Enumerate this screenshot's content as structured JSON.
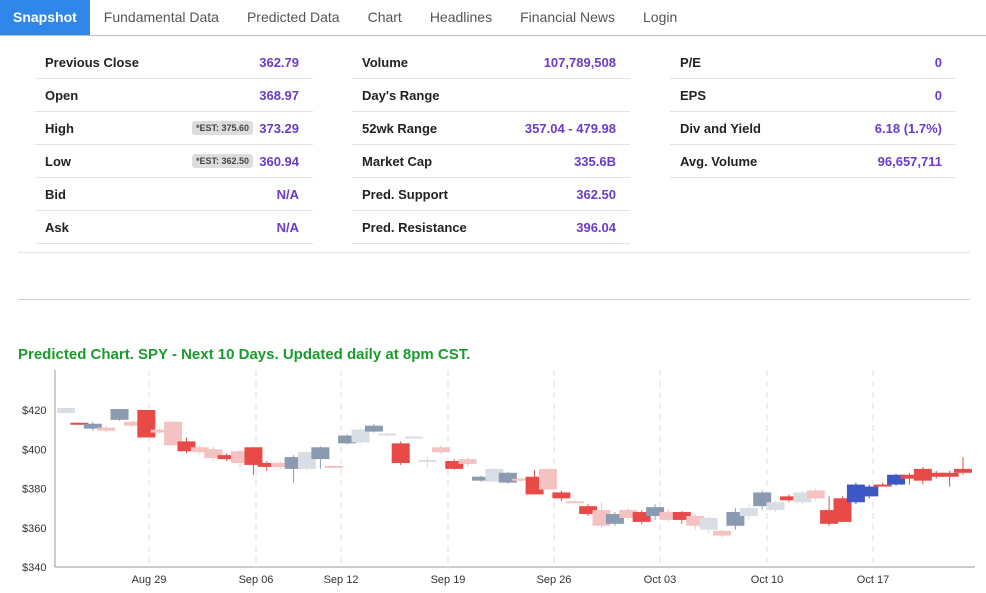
{
  "tabs": [
    "Snapshot",
    "Fundamental Data",
    "Predicted Data",
    "Chart",
    "Headlines",
    "Financial News",
    "Login"
  ],
  "stats": {
    "col1": [
      {
        "label": "Previous Close",
        "value": "362.79"
      },
      {
        "label": "Open",
        "value": "368.97"
      },
      {
        "label": "High",
        "value": "373.29",
        "est": "*EST: 375.60"
      },
      {
        "label": "Low",
        "value": "360.94",
        "est": "*EST: 362.50"
      },
      {
        "label": "Bid",
        "value": "N/A"
      },
      {
        "label": "Ask",
        "value": "N/A"
      }
    ],
    "col2": [
      {
        "label": "Volume",
        "value": "107,789,508"
      },
      {
        "label": "Day's Range",
        "value": ""
      },
      {
        "label": "52wk Range",
        "value": "357.04 - 479.98"
      },
      {
        "label": "Market Cap",
        "value": "335.6B"
      },
      {
        "label": "Pred. Support",
        "value": "362.50"
      },
      {
        "label": "Pred. Resistance",
        "value": "396.04"
      }
    ],
    "col3": [
      {
        "label": "P/E",
        "value": "0"
      },
      {
        "label": "EPS",
        "value": "0"
      },
      {
        "label": "Div and Yield",
        "value": "6.18 (1.7%)"
      },
      {
        "label": "Avg. Volume",
        "value": "96,657,711"
      }
    ]
  },
  "chart_title": "Predicted Chart. SPY - Next 10 Days. Updated daily at 8pm CST.",
  "colors": {
    "accent": "#2f87ea",
    "value": "#6a3cc9",
    "title": "#1a9c2c",
    "up_actual": "#8a9ab0",
    "down_actual": "#e84a48",
    "up_light": "#d9dde4",
    "down_light": "#f4c2c0",
    "up_pred": "#3f57c4",
    "down_pred": "#e84a48"
  },
  "chart_data": {
    "type": "candlestick",
    "y_ticks": [
      "$420",
      "$400",
      "$380",
      "$360",
      "$340"
    ],
    "ylim": [
      340,
      420
    ],
    "x_ticks": [
      "Aug 29",
      "Sep 06",
      "Sep 12",
      "Sep 19",
      "Sep 26",
      "Oct 03",
      "Oct 10",
      "Oct 17"
    ],
    "candles": [
      {
        "o": 418.5,
        "c": 421.0,
        "h": 421.0,
        "l": 418.5,
        "k": "upl"
      },
      {
        "o": 413.5,
        "c": 412.5,
        "h": 413.5,
        "l": 412.5,
        "k": "dn"
      },
      {
        "o": 413.0,
        "c": 410.5,
        "h": 414.0,
        "l": 409.5,
        "k": "up"
      },
      {
        "o": 411.0,
        "c": 409.5,
        "h": 412.0,
        "l": 408.5,
        "k": "dnl"
      },
      {
        "o": 415.0,
        "c": 420.5,
        "h": 420.5,
        "l": 414.5,
        "k": "up"
      },
      {
        "o": 412.0,
        "c": 414.0,
        "h": 414.5,
        "l": 411.5,
        "k": "dnl"
      },
      {
        "o": 420.0,
        "c": 406.0,
        "h": 420.0,
        "l": 406.0,
        "k": "dn"
      },
      {
        "o": 410.0,
        "c": 408.5,
        "h": 411.0,
        "l": 408.0,
        "k": "dnl"
      },
      {
        "o": 414.0,
        "c": 402.0,
        "h": 414.0,
        "l": 402.0,
        "k": "dnl"
      },
      {
        "o": 404.0,
        "c": 399.0,
        "h": 406.0,
        "l": 398.0,
        "k": "dn"
      },
      {
        "o": 401.0,
        "c": 398.5,
        "h": 402.0,
        "l": 397.5,
        "k": "dnl"
      },
      {
        "o": 400.0,
        "c": 395.5,
        "h": 401.0,
        "l": 394.0,
        "k": "dnl"
      },
      {
        "o": 397.0,
        "c": 395.0,
        "h": 398.0,
        "l": 394.0,
        "k": "dn"
      },
      {
        "o": 399.0,
        "c": 393.0,
        "h": 400.0,
        "l": 391.0,
        "k": "dnl"
      },
      {
        "o": 401.0,
        "c": 392.0,
        "h": 401.0,
        "l": 387.0,
        "k": "dn"
      },
      {
        "o": 393.0,
        "c": 391.0,
        "h": 394.0,
        "l": 389.0,
        "k": "dn"
      },
      {
        "o": 393.0,
        "c": 391.0,
        "h": 394.0,
        "l": 390.0,
        "k": "dnl"
      },
      {
        "o": 390.0,
        "c": 396.0,
        "h": 397.0,
        "l": 383.0,
        "k": "up"
      },
      {
        "o": 390.0,
        "c": 398.5,
        "h": 399.0,
        "l": 389.0,
        "k": "upl"
      },
      {
        "o": 395.0,
        "c": 401.0,
        "h": 401.5,
        "l": 390.0,
        "k": "up"
      },
      {
        "o": 391.5,
        "c": 391.0,
        "h": 392.0,
        "l": 391.0,
        "k": "dnl"
      },
      {
        "o": 403.0,
        "c": 407.0,
        "h": 407.5,
        "l": 402.5,
        "k": "up"
      },
      {
        "o": 403.5,
        "c": 410.0,
        "h": 410.5,
        "l": 403.0,
        "k": "upl"
      },
      {
        "o": 409.0,
        "c": 412.0,
        "h": 413.0,
        "l": 408.5,
        "k": "up"
      },
      {
        "o": 407.0,
        "c": 408.0,
        "h": 408.5,
        "l": 406.5,
        "k": "upl"
      },
      {
        "o": 403.0,
        "c": 393.0,
        "h": 404.0,
        "l": 392.0,
        "k": "dn"
      },
      {
        "o": 406.0,
        "c": 406.5,
        "h": 407.0,
        "l": 405.5,
        "k": "upl"
      },
      {
        "o": 394.0,
        "c": 394.5,
        "h": 396.0,
        "l": 390.5,
        "k": "upl"
      },
      {
        "o": 401.0,
        "c": 398.5,
        "h": 402.0,
        "l": 397.5,
        "k": "dnl"
      },
      {
        "o": 394.0,
        "c": 390.0,
        "h": 395.0,
        "l": 389.5,
        "k": "dn"
      },
      {
        "o": 395.0,
        "c": 392.5,
        "h": 396.0,
        "l": 391.0,
        "k": "dnl"
      },
      {
        "o": 384.0,
        "c": 386.0,
        "h": 386.5,
        "l": 383.5,
        "k": "up"
      },
      {
        "o": 383.5,
        "c": 390.0,
        "h": 390.5,
        "l": 383.0,
        "k": "upl"
      },
      {
        "o": 383.0,
        "c": 388.0,
        "h": 388.5,
        "l": 382.5,
        "k": "up"
      },
      {
        "o": 385.0,
        "c": 384.0,
        "h": 385.5,
        "l": 383.5,
        "k": "dnl"
      },
      {
        "o": 386.0,
        "c": 377.0,
        "h": 389.5,
        "l": 377.0,
        "k": "dn"
      },
      {
        "o": 390.0,
        "c": 379.5,
        "h": 390.0,
        "l": 379.5,
        "k": "dnl"
      },
      {
        "o": 378.0,
        "c": 375.0,
        "h": 379.0,
        "l": 373.5,
        "k": "dn"
      },
      {
        "o": 373.0,
        "c": 373.5,
        "h": 374.0,
        "l": 372.5,
        "k": "dnl"
      },
      {
        "o": 371.0,
        "c": 367.0,
        "h": 372.0,
        "l": 366.0,
        "k": "dn"
      },
      {
        "o": 369.0,
        "c": 361.0,
        "h": 373.0,
        "l": 360.0,
        "k": "dnl"
      },
      {
        "o": 362.0,
        "c": 367.0,
        "h": 368.0,
        "l": 361.0,
        "k": "up"
      },
      {
        "o": 369.0,
        "c": 365.0,
        "h": 370.0,
        "l": 364.0,
        "k": "dnl"
      },
      {
        "o": 368.0,
        "c": 363.0,
        "h": 369.0,
        "l": 362.0,
        "k": "dn"
      },
      {
        "o": 366.0,
        "c": 370.5,
        "h": 372.0,
        "l": 364.0,
        "k": "up"
      },
      {
        "o": 368.0,
        "c": 364.0,
        "h": 369.5,
        "l": 363.0,
        "k": "dnl"
      },
      {
        "o": 368.0,
        "c": 364.0,
        "h": 368.5,
        "l": 362.0,
        "k": "dn"
      },
      {
        "o": 366.0,
        "c": 361.0,
        "h": 367.0,
        "l": 359.0,
        "k": "dnl"
      },
      {
        "o": 359.0,
        "c": 365.0,
        "h": 366.0,
        "l": 357.0,
        "k": "upl"
      },
      {
        "o": 356.0,
        "c": 358.5,
        "h": 359.0,
        "l": 355.0,
        "k": "dnl"
      },
      {
        "o": 361.0,
        "c": 368.0,
        "h": 370.0,
        "l": 359.0,
        "k": "up"
      },
      {
        "o": 366.0,
        "c": 370.0,
        "h": 372.0,
        "l": 364.0,
        "k": "upl"
      },
      {
        "o": 371.0,
        "c": 378.0,
        "h": 379.0,
        "l": 369.0,
        "k": "up"
      },
      {
        "o": 373.0,
        "c": 369.0,
        "h": 374.0,
        "l": 368.0,
        "k": "upl"
      },
      {
        "o": 376.0,
        "c": 374.0,
        "h": 377.0,
        "l": 373.0,
        "k": "dn"
      },
      {
        "o": 378.0,
        "c": 373.0,
        "h": 379.0,
        "l": 372.0,
        "k": "upl"
      },
      {
        "o": 375.0,
        "c": 379.0,
        "h": 380.0,
        "l": 374.0,
        "k": "dnl"
      },
      {
        "o": 362.0,
        "c": 369.0,
        "h": 376.0,
        "l": 361.0,
        "k": "dn"
      },
      {
        "o": 375.0,
        "c": 363.0,
        "h": 376.0,
        "l": 363.0,
        "k": "dnt"
      },
      {
        "o": 373.0,
        "c": 382.0,
        "h": 383.0,
        "l": 372.0,
        "k": "upp"
      },
      {
        "o": 376.0,
        "c": 381.0,
        "h": 382.0,
        "l": 375.0,
        "k": "upp"
      },
      {
        "o": 381.5,
        "c": 382.0,
        "h": 383.0,
        "l": 381.0,
        "k": "dn"
      },
      {
        "o": 382.0,
        "c": 387.0,
        "h": 387.5,
        "l": 381.5,
        "k": "upp"
      },
      {
        "o": 385.0,
        "c": 387.0,
        "h": 388.0,
        "l": 382.0,
        "k": "dn"
      },
      {
        "o": 384.0,
        "c": 390.0,
        "h": 391.0,
        "l": 382.0,
        "k": "dn"
      },
      {
        "o": 386.0,
        "c": 388.0,
        "h": 389.0,
        "l": 385.0,
        "k": "dn"
      },
      {
        "o": 386.0,
        "c": 388.0,
        "h": 389.0,
        "l": 381.0,
        "k": "dn"
      },
      {
        "o": 388.0,
        "c": 390.0,
        "h": 396.0,
        "l": 387.0,
        "k": "dn"
      }
    ]
  }
}
